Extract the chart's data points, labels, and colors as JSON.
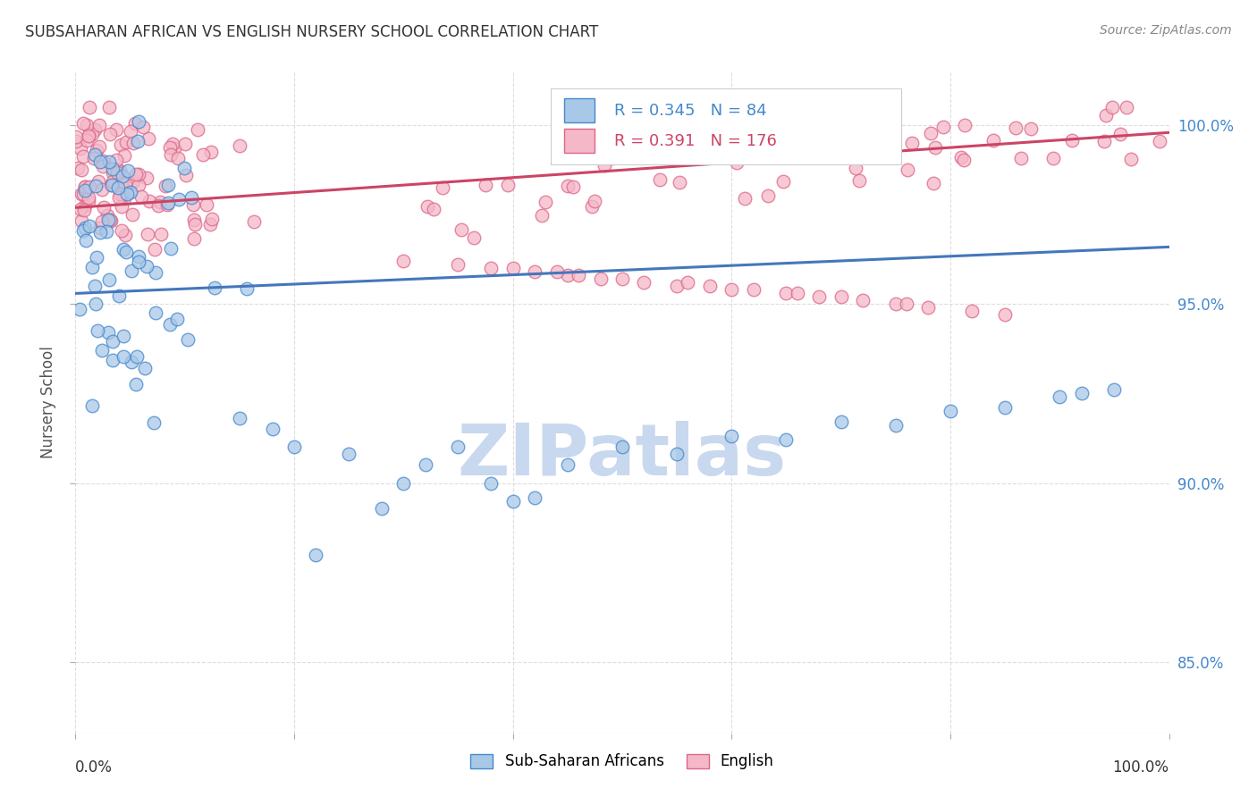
{
  "title": "SUBSAHARAN AFRICAN VS ENGLISH NURSERY SCHOOL CORRELATION CHART",
  "source": "Source: ZipAtlas.com",
  "ylabel": "Nursery School",
  "legend_blue_label": "Sub-Saharan Africans",
  "legend_pink_label": "English",
  "legend_blue_R": "R = 0.345",
  "legend_blue_N": "N = 84",
  "legend_pink_R": "R = 0.391",
  "legend_pink_N": "N = 176",
  "blue_color": "#a8c8e8",
  "pink_color": "#f4b8c8",
  "blue_edge_color": "#4488cc",
  "pink_edge_color": "#dd6688",
  "blue_line_color": "#4477bb",
  "pink_line_color": "#cc4466",
  "legend_text_blue": "#4488cc",
  "legend_text_pink": "#cc4466",
  "background_color": "#ffffff",
  "grid_color": "#dddddd",
  "watermark_color": "#c8d8ee",
  "title_color": "#333333",
  "right_axis_color": "#4488cc",
  "source_color": "#888888",
  "xlim": [
    0,
    1.0
  ],
  "ylim": [
    0.83,
    1.015
  ],
  "yticks": [
    0.85,
    0.9,
    0.95,
    1.0
  ],
  "ytick_labels": [
    "85.0%",
    "90.0%",
    "95.0%",
    "100.0%"
  ]
}
